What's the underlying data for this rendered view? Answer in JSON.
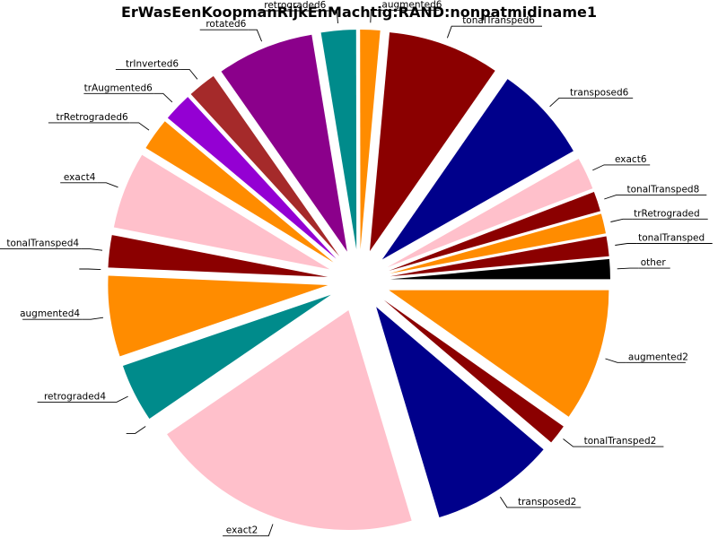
{
  "chart_data": {
    "type": "pie",
    "title": "ErWasEenKoopmanRijkEnMachtig:RAND:nonpatmidiname1",
    "legend": "none",
    "slices": [
      {
        "label": "other",
        "value": 1.6,
        "color": "#000000"
      },
      {
        "label": "tonalTransped",
        "value": 1.6,
        "color": "#8b0000"
      },
      {
        "label": "trRetrograded",
        "value": 1.6,
        "color": "#ff8c00"
      },
      {
        "label": "tonalTransped8",
        "value": 1.6,
        "color": "#8b0000"
      },
      {
        "label": "exact6",
        "value": 2.6,
        "color": "#ffc0cb"
      },
      {
        "label": "transposed6",
        "value": 7.8,
        "color": "#00008b"
      },
      {
        "label": "tonalTransped6",
        "value": 9.0,
        "color": "#8b0000"
      },
      {
        "label": "augmented6",
        "value": 1.6,
        "color": "#ff8c00"
      },
      {
        "label": "retrograded6",
        "value": 2.8,
        "color": "#008b8b"
      },
      {
        "label": "rotated6",
        "value": 7.8,
        "color": "#8b008b"
      },
      {
        "label": "trInverted6",
        "value": 2.3,
        "color": "#a52a2a"
      },
      {
        "label": "trAugmented6",
        "value": 2.3,
        "color": "#9400d3"
      },
      {
        "label": "trRetrograded6",
        "value": 2.6,
        "color": "#ff8c00"
      },
      {
        "label": "exact4",
        "value": 6.2,
        "color": "#ffc0cb"
      },
      {
        "label": "tonalTransped4",
        "value": 2.6,
        "color": "#8b0000"
      },
      {
        "label": "",
        "value": 0.0,
        "color": "#000000"
      },
      {
        "label": "augmented4",
        "value": 6.5,
        "color": "#ff8c00"
      },
      {
        "label": "retrograded4",
        "value": 4.7,
        "color": "#008b8b"
      },
      {
        "label": "",
        "value": 0.0,
        "color": "#000000"
      },
      {
        "label": "exact2",
        "value": 22.0,
        "color": "#ffc0cb"
      },
      {
        "label": "transposed2",
        "value": 10.0,
        "color": "#00008b"
      },
      {
        "label": "tonalTransped2",
        "value": 1.6,
        "color": "#8b0000"
      },
      {
        "label": "augmented2",
        "value": 10.7,
        "color": "#ff8c00"
      }
    ]
  }
}
